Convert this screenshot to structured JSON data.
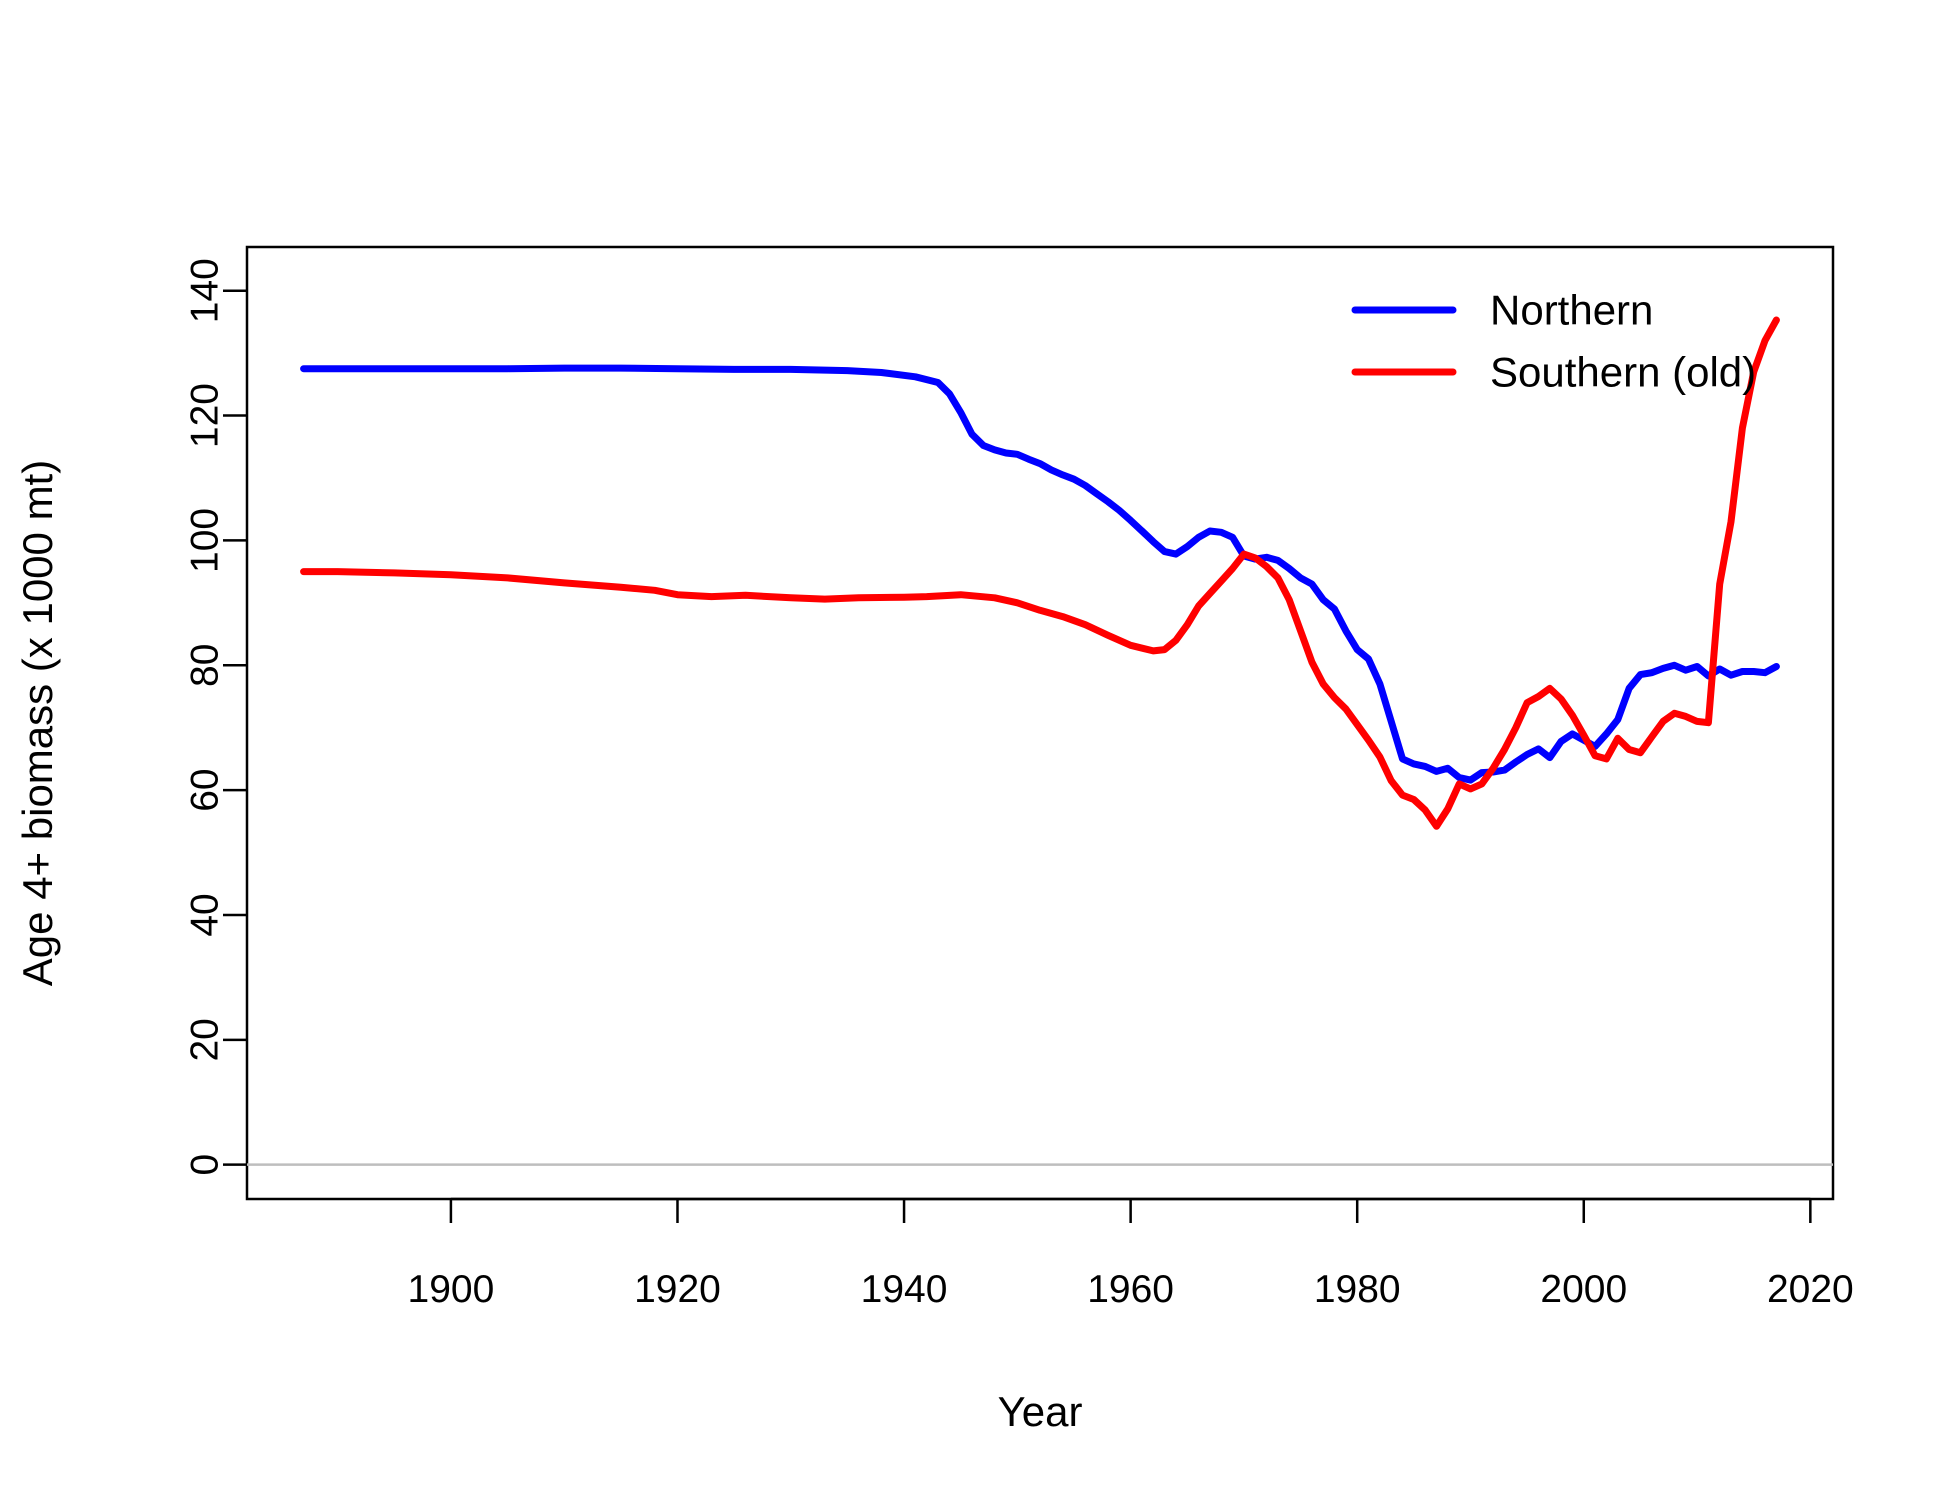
{
  "chart_data": {
    "type": "line",
    "title": "",
    "xlabel": "Year",
    "ylabel": "Age 4+ biomass (x 1000 mt)",
    "xlim": [
      1882,
      2022
    ],
    "ylim": [
      -5.5,
      147
    ],
    "xticks": [
      1900,
      1920,
      1940,
      1960,
      1980,
      2000,
      2020
    ],
    "yticks": [
      0,
      20,
      40,
      60,
      80,
      100,
      120,
      140
    ],
    "reference_line": {
      "y": 0,
      "color": "#bebebe"
    },
    "grid": false,
    "legend": {
      "placement": "top-right",
      "box": false
    },
    "series": [
      {
        "name": "Northern",
        "color": "#0000ff",
        "x": [
          1887,
          1890,
          1895,
          1900,
          1905,
          1910,
          1915,
          1920,
          1925,
          1930,
          1935,
          1938,
          1941,
          1943,
          1944,
          1945,
          1946,
          1947,
          1948,
          1949,
          1950,
          1951,
          1952,
          1953,
          1954,
          1955,
          1956,
          1957,
          1958,
          1959,
          1960,
          1961,
          1962,
          1963,
          1964,
          1965,
          1966,
          1967,
          1968,
          1969,
          1970,
          1971,
          1972,
          1973,
          1974,
          1975,
          1976,
          1977,
          1978,
          1979,
          1980,
          1981,
          1982,
          1983,
          1984,
          1985,
          1986,
          1987,
          1988,
          1989,
          1990,
          1991,
          1992,
          1993,
          1994,
          1995,
          1996,
          1997,
          1998,
          1999,
          2000,
          2001,
          2002,
          2003,
          2004,
          2005,
          2006,
          2007,
          2008,
          2009,
          2010,
          2011,
          2012,
          2013,
          2014,
          2015,
          2016,
          2017
        ],
        "y": [
          127.5,
          127.5,
          127.5,
          127.5,
          127.5,
          127.6,
          127.6,
          127.5,
          127.4,
          127.4,
          127.2,
          126.9,
          126.2,
          125.3,
          123.5,
          120.5,
          117.0,
          115.2,
          114.5,
          114.0,
          113.8,
          113.0,
          112.3,
          111.3,
          110.5,
          109.8,
          108.8,
          107.5,
          106.2,
          104.8,
          103.2,
          101.5,
          99.8,
          98.2,
          97.8,
          99.0,
          100.5,
          101.5,
          101.3,
          100.5,
          97.5,
          97.0,
          97.3,
          96.8,
          95.5,
          94.0,
          93.0,
          90.5,
          89.0,
          85.5,
          82.5,
          81.0,
          77.0,
          71.0,
          65.0,
          64.2,
          63.8,
          63.0,
          63.5,
          62.0,
          61.6,
          62.8,
          62.9,
          63.2,
          64.5,
          65.7,
          66.6,
          65.2,
          67.8,
          69.0,
          68.0,
          67.0,
          69.0,
          71.3,
          76.3,
          78.5,
          78.8,
          79.5,
          80.0,
          79.2,
          79.8,
          78.3,
          79.4,
          78.4,
          79.0,
          79.0,
          78.8,
          79.8
        ]
      },
      {
        "name": "Southern (old)",
        "color": "#ff0000",
        "x": [
          1887,
          1890,
          1895,
          1900,
          1905,
          1910,
          1915,
          1918,
          1920,
          1923,
          1926,
          1930,
          1933,
          1936,
          1940,
          1942,
          1945,
          1948,
          1950,
          1952,
          1954,
          1956,
          1958,
          1960,
          1962,
          1963,
          1964,
          1965,
          1966,
          1967,
          1968,
          1969,
          1970,
          1971,
          1972,
          1973,
          1974,
          1975,
          1976,
          1977,
          1978,
          1979,
          1980,
          1981,
          1982,
          1983,
          1984,
          1985,
          1986,
          1987,
          1988,
          1989,
          1990,
          1991,
          1992,
          1993,
          1994,
          1995,
          1996,
          1997,
          1998,
          1999,
          2000,
          2001,
          2002,
          2003,
          2004,
          2005,
          2006,
          2007,
          2008,
          2009,
          2010,
          2011,
          2012,
          2013,
          2014,
          2015,
          2016,
          2017
        ],
        "y": [
          95.0,
          95.0,
          94.8,
          94.5,
          94.0,
          93.2,
          92.5,
          92.0,
          91.3,
          91.0,
          91.2,
          90.8,
          90.6,
          90.8,
          90.9,
          91.0,
          91.3,
          90.8,
          90.0,
          88.8,
          87.8,
          86.5,
          84.8,
          83.2,
          82.3,
          82.5,
          84.0,
          86.5,
          89.5,
          91.5,
          93.5,
          95.5,
          97.8,
          97.2,
          95.8,
          94.0,
          90.5,
          85.5,
          80.5,
          77.0,
          74.8,
          73.0,
          70.5,
          68.0,
          65.3,
          61.5,
          59.2,
          58.5,
          56.8,
          54.2,
          57.0,
          61.0,
          60.2,
          61.0,
          63.5,
          66.5,
          70.0,
          74.0,
          75.0,
          76.3,
          74.6,
          72.0,
          68.8,
          65.5,
          65.0,
          68.3,
          66.5,
          66.0,
          68.5,
          71.0,
          72.3,
          71.8,
          71.0,
          70.8,
          93.0,
          103.0,
          118.0,
          127.0,
          132.0,
          135.3
        ]
      }
    ]
  }
}
